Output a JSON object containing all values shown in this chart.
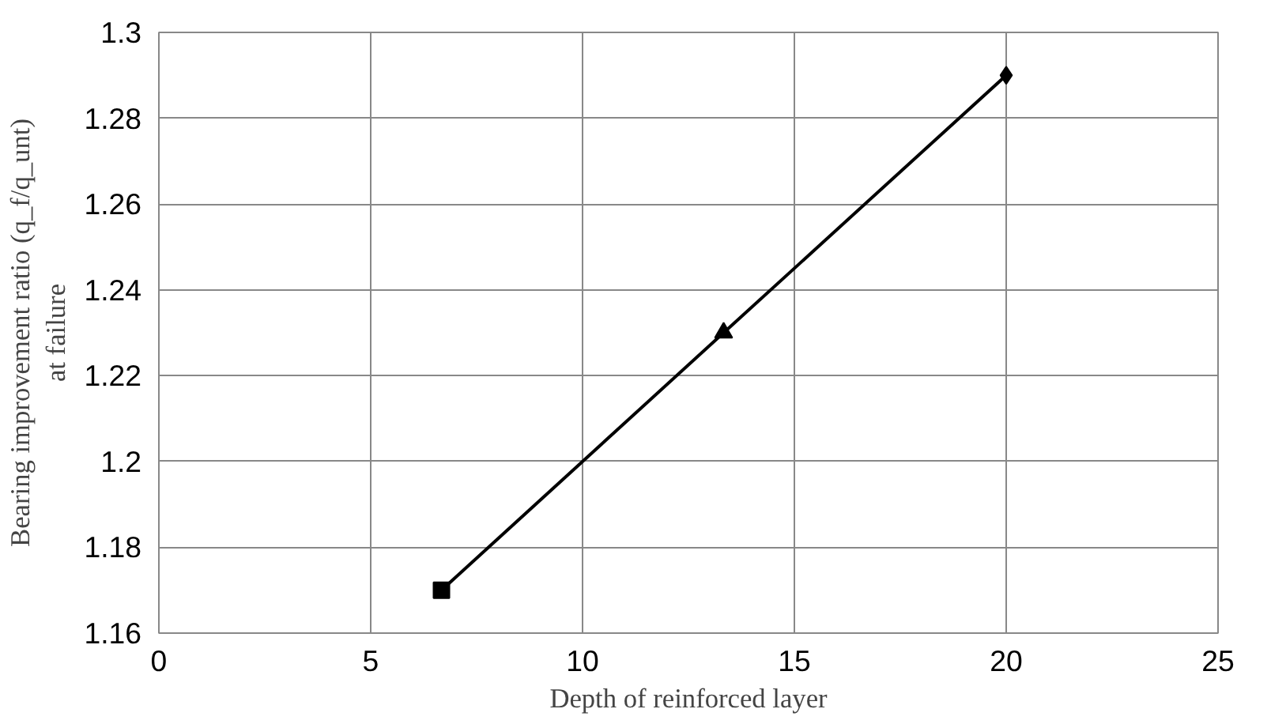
{
  "chart_data": {
    "type": "line",
    "xlabel": "Depth of reinforced layer",
    "ylabel": "Bearing improvement ratio (q_f/q_unt)\nat failure",
    "x": [
      6.67,
      13.33,
      20
    ],
    "series": [
      {
        "color": "#000000",
        "values": [
          1.17,
          1.23,
          1.29
        ],
        "marker": [
          "square",
          "triangle",
          "diamond"
        ]
      }
    ],
    "xlim": [
      0,
      25
    ],
    "xticks": [
      0,
      5,
      10,
      15,
      20,
      25
    ],
    "ylim": [
      1.16,
      1.3
    ],
    "yticks": [
      1.16,
      1.18,
      1.2,
      1.22,
      1.24,
      1.26,
      1.28,
      1.3
    ],
    "grid": true,
    "line_style": "solid"
  }
}
